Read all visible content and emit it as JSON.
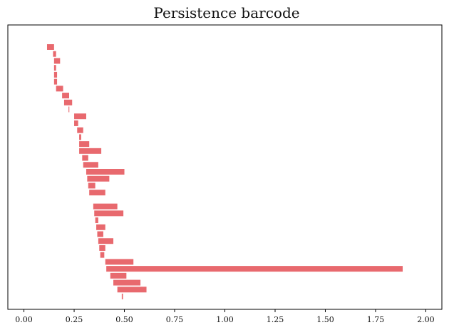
{
  "chart_data": {
    "type": "bar",
    "orientation": "horizontal",
    "title": "Persistence barcode",
    "xlabel": "",
    "ylabel": "",
    "xlim": [
      -0.08,
      2.08
    ],
    "grid": false,
    "legend": "none",
    "bar_color": "#e8696e",
    "x_ticks": [
      "0.00",
      "0.25",
      "0.50",
      "0.75",
      "1.00",
      "1.25",
      "1.50",
      "1.75",
      "2.00"
    ],
    "bars": [
      {
        "birth": 0.115,
        "death": 0.15
      },
      {
        "birth": 0.145,
        "death": 0.16
      },
      {
        "birth": 0.15,
        "death": 0.18
      },
      {
        "birth": 0.15,
        "death": 0.16
      },
      {
        "birth": 0.15,
        "death": 0.165
      },
      {
        "birth": 0.15,
        "death": 0.165
      },
      {
        "birth": 0.16,
        "death": 0.195
      },
      {
        "birth": 0.19,
        "death": 0.225
      },
      {
        "birth": 0.2,
        "death": 0.24
      },
      {
        "birth": 0.222,
        "death": 0.226
      },
      {
        "birth": 0.25,
        "death": 0.31
      },
      {
        "birth": 0.25,
        "death": 0.27
      },
      {
        "birth": 0.265,
        "death": 0.295
      },
      {
        "birth": 0.275,
        "death": 0.285
      },
      {
        "birth": 0.275,
        "death": 0.325
      },
      {
        "birth": 0.275,
        "death": 0.385
      },
      {
        "birth": 0.29,
        "death": 0.32
      },
      {
        "birth": 0.295,
        "death": 0.37
      },
      {
        "birth": 0.31,
        "death": 0.5
      },
      {
        "birth": 0.315,
        "death": 0.425
      },
      {
        "birth": 0.32,
        "death": 0.355
      },
      {
        "birth": 0.325,
        "death": 0.405
      },
      {
        "birth": null,
        "death": null
      },
      {
        "birth": 0.345,
        "death": 0.465
      },
      {
        "birth": 0.35,
        "death": 0.495
      },
      {
        "birth": 0.355,
        "death": 0.37
      },
      {
        "birth": 0.36,
        "death": 0.405
      },
      {
        "birth": 0.365,
        "death": 0.395
      },
      {
        "birth": 0.37,
        "death": 0.445
      },
      {
        "birth": 0.375,
        "death": 0.405
      },
      {
        "birth": 0.38,
        "death": 0.4
      },
      {
        "birth": 0.405,
        "death": 0.545
      },
      {
        "birth": 0.41,
        "death": 1.885
      },
      {
        "birth": 0.43,
        "death": 0.51
      },
      {
        "birth": 0.445,
        "death": 0.58
      },
      {
        "birth": 0.465,
        "death": 0.61
      },
      {
        "birth": 0.487,
        "death": 0.493
      }
    ]
  }
}
